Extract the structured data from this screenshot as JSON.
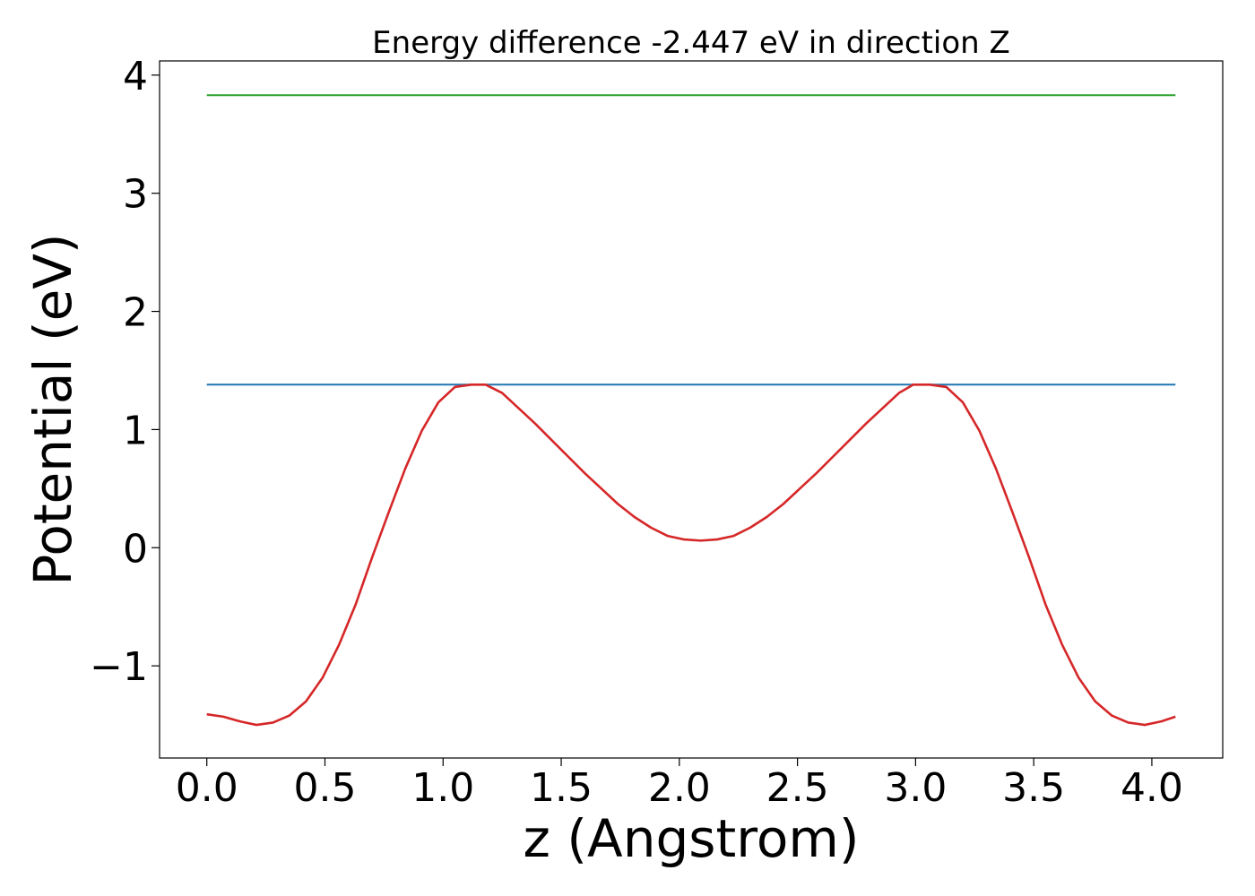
{
  "chart_data": {
    "type": "line",
    "title": "Energy difference -2.447 eV in direction Z",
    "xlabel": "z (Angstrom)",
    "ylabel": "Potential (eV)",
    "xlim": [
      -0.2,
      4.3
    ],
    "ylim": [
      -1.78,
      4.12
    ],
    "x_ticks": [
      0.0,
      0.5,
      1.0,
      1.5,
      2.0,
      2.5,
      3.0,
      3.5,
      4.0
    ],
    "x_tick_labels": [
      "0.0",
      "0.5",
      "1.0",
      "1.5",
      "2.0",
      "2.5",
      "3.0",
      "3.5",
      "4.0"
    ],
    "y_ticks": [
      -1,
      0,
      1,
      2,
      3,
      4
    ],
    "y_tick_labels": [
      "−1",
      "0",
      "1",
      "2",
      "3",
      "4"
    ],
    "grid": false,
    "series": [
      {
        "color": "#2ca02c",
        "x": [
          0.0,
          4.1
        ],
        "y": [
          3.83,
          3.83
        ]
      },
      {
        "color": "#1f77b4",
        "x": [
          0.0,
          4.1
        ],
        "y": [
          1.38,
          1.38
        ]
      },
      {
        "color": "#d62728",
        "x": [
          0.0,
          0.07,
          0.14,
          0.21,
          0.28,
          0.35,
          0.42,
          0.49,
          0.56,
          0.63,
          0.7,
          0.77,
          0.84,
          0.91,
          0.98,
          1.05,
          1.12,
          1.18,
          1.25,
          1.32,
          1.39,
          1.46,
          1.53,
          1.6,
          1.67,
          1.74,
          1.81,
          1.88,
          1.95,
          2.02,
          2.09,
          2.16,
          2.23,
          2.3,
          2.37,
          2.44,
          2.51,
          2.58,
          2.65,
          2.72,
          2.79,
          2.86,
          2.93,
          2.99,
          3.06,
          3.13,
          3.2,
          3.27,
          3.34,
          3.41,
          3.48,
          3.55,
          3.62,
          3.69,
          3.76,
          3.83,
          3.9,
          3.97,
          4.04,
          4.1
        ],
        "y": [
          -1.41,
          -1.43,
          -1.47,
          -1.5,
          -1.48,
          -1.42,
          -1.3,
          -1.1,
          -0.82,
          -0.48,
          -0.08,
          0.3,
          0.67,
          0.99,
          1.23,
          1.36,
          1.38,
          1.38,
          1.31,
          1.18,
          1.05,
          0.91,
          0.77,
          0.63,
          0.5,
          0.37,
          0.26,
          0.17,
          0.1,
          0.07,
          0.06,
          0.07,
          0.1,
          0.17,
          0.26,
          0.37,
          0.5,
          0.63,
          0.77,
          0.91,
          1.05,
          1.18,
          1.31,
          1.38,
          1.38,
          1.36,
          1.23,
          0.99,
          0.67,
          0.3,
          -0.08,
          -0.48,
          -0.82,
          -1.1,
          -1.3,
          -1.42,
          -1.48,
          -1.5,
          -1.47,
          -1.43
        ]
      }
    ]
  }
}
